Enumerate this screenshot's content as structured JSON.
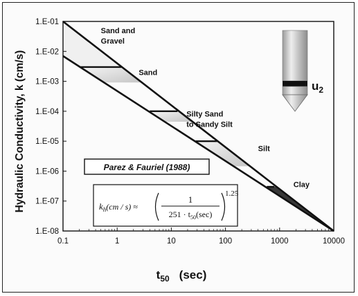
{
  "chart_data": {
    "type": "line",
    "title": "",
    "xlabel": "t50",
    "xlabel_main": "t",
    "xlabel_sub": "50",
    "xlabel_unit": "(sec)",
    "ylabel": "Hydraulic Conductivity, k (cm/s)",
    "xscale": "log",
    "yscale": "log",
    "xlim": [
      0.1,
      10000
    ],
    "ylim": [
      1e-08,
      0.1
    ],
    "x_ticks": [
      0.1,
      1,
      10,
      100,
      1000,
      10000
    ],
    "x_tick_labels": [
      "0.1",
      "1",
      "10",
      "100",
      "1000",
      "10000"
    ],
    "y_ticks": [
      0.1,
      0.01,
      0.001,
      0.0001,
      1e-05,
      1e-06,
      1e-07,
      1e-08
    ],
    "y_tick_labels": [
      "1.E-01",
      "1.E-02",
      "1.E-03",
      "1.E-04",
      "1.E-05",
      "1.E-06",
      "1.E-07",
      "1.E-08"
    ],
    "grid": false,
    "series": [
      {
        "points": [
          [
            0.1,
            0.1
          ],
          [
            10000,
            1e-08
          ]
        ]
      },
      {
        "points": [
          [
            0.1,
            0.007
          ],
          [
            10000,
            1e-08
          ]
        ]
      }
    ],
    "zone_separators": [
      {
        "x1": 0.2,
        "x2": 1.2,
        "y": 0.003
      },
      {
        "x1": 4,
        "x2": 13,
        "y": 0.0001
      },
      {
        "x1": 28,
        "x2": 70,
        "y": 1e-05
      },
      {
        "x1": 580,
        "x2": 800,
        "y": 3e-07
      }
    ],
    "annotations": [
      {
        "text": "Sand and",
        "x": 0.5,
        "y": 0.04
      },
      {
        "text": "Gravel",
        "x": 0.5,
        "y": 0.018
      },
      {
        "text": "Sand",
        "x": 2.5,
        "y": 0.0016
      },
      {
        "text": "Silty Sand",
        "x": 19,
        "y": 6.6e-05
      },
      {
        "text": "to Sandy Silt",
        "x": 19,
        "y": 3e-05
      },
      {
        "text": "Silt",
        "x": 400,
        "y": 4.7e-06
      },
      {
        "text": "Clay",
        "x": 1800,
        "y": 2.9e-07
      }
    ],
    "source_label": "Parez & Fauriel (1988)",
    "equation": {
      "lhs": "k",
      "lhs_sub": "h",
      "lhs_units": "(cm / s) ≈",
      "numerator": "1",
      "denominator": "251 · t",
      "denominator_sub": "50",
      "denominator_tail": "(sec)",
      "exponent": "1.25"
    },
    "probe_label": "u",
    "probe_label_sub": "2"
  },
  "colors": {
    "line": "#111111",
    "zone_fill": "#c9c9c9",
    "background": "#fbfbfb",
    "probe_body": "#d0d0d0"
  }
}
